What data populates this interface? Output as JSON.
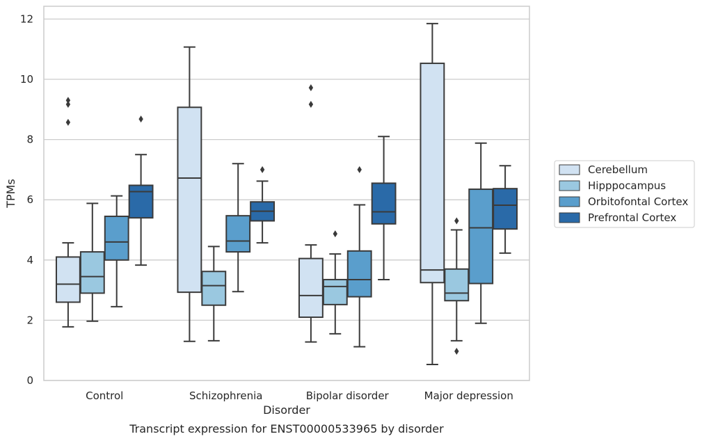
{
  "chart_data": {
    "type": "box",
    "xlabel": "Disorder",
    "ylabel": "TPMs",
    "caption": "Transcript expression for ENST00000533965 by disorder",
    "ylim": [
      0,
      12.4
    ],
    "yticks": [
      0,
      2,
      4,
      6,
      8,
      10,
      12
    ],
    "grid": "horizontal",
    "legend_position": "right",
    "categories": [
      "Control",
      "Schizophrenia",
      "Bipolar disorder",
      "Major depression"
    ],
    "series": [
      {
        "name": "Cerebellum",
        "color": "#d1e2f2",
        "boxes": [
          {
            "whislo": 1.78,
            "q1": 2.6,
            "med": 3.2,
            "q3": 4.1,
            "whishi": 4.57,
            "fliers": [
              8.57,
              9.17,
              9.3
            ]
          },
          {
            "whislo": 1.3,
            "q1": 2.93,
            "med": 6.72,
            "q3": 9.07,
            "whishi": 11.07,
            "fliers": []
          },
          {
            "whislo": 1.28,
            "q1": 2.1,
            "med": 2.82,
            "q3": 4.05,
            "whishi": 4.5,
            "fliers": [
              9.17,
              9.72
            ]
          },
          {
            "whislo": 0.53,
            "q1": 3.25,
            "med": 3.67,
            "q3": 10.53,
            "whishi": 11.85,
            "fliers": []
          }
        ]
      },
      {
        "name": "Hipppocampus",
        "color": "#9ac8e0",
        "boxes": [
          {
            "whislo": 1.97,
            "q1": 2.9,
            "med": 3.45,
            "q3": 4.27,
            "whishi": 5.88,
            "fliers": []
          },
          {
            "whislo": 1.32,
            "q1": 2.5,
            "med": 3.15,
            "q3": 3.62,
            "whishi": 4.45,
            "fliers": []
          },
          {
            "whislo": 1.55,
            "q1": 2.52,
            "med": 3.12,
            "q3": 3.35,
            "whishi": 4.2,
            "fliers": [
              4.87
            ]
          },
          {
            "whislo": 1.32,
            "q1": 2.65,
            "med": 2.9,
            "q3": 3.7,
            "whishi": 5.0,
            "fliers": [
              0.97,
              5.3
            ]
          }
        ]
      },
      {
        "name": "Orbitofontal Cortex",
        "color": "#5a9ecc",
        "boxes": [
          {
            "whislo": 2.45,
            "q1": 4.0,
            "med": 4.6,
            "q3": 5.45,
            "whishi": 6.13,
            "fliers": []
          },
          {
            "whislo": 2.95,
            "q1": 4.27,
            "med": 4.63,
            "q3": 5.47,
            "whishi": 7.2,
            "fliers": []
          },
          {
            "whislo": 1.12,
            "q1": 2.78,
            "med": 3.35,
            "q3": 4.3,
            "whishi": 5.83,
            "fliers": [
              7.0
            ]
          },
          {
            "whislo": 1.9,
            "q1": 3.22,
            "med": 5.07,
            "q3": 6.35,
            "whishi": 7.88,
            "fliers": []
          }
        ]
      },
      {
        "name": "Prefrontal Cortex",
        "color": "#2a6aa8",
        "boxes": [
          {
            "whislo": 3.83,
            "q1": 5.4,
            "med": 6.27,
            "q3": 6.48,
            "whishi": 7.5,
            "fliers": [
              8.68
            ]
          },
          {
            "whislo": 4.57,
            "q1": 5.3,
            "med": 5.62,
            "q3": 5.93,
            "whishi": 6.62,
            "fliers": [
              7.0
            ]
          },
          {
            "whislo": 3.35,
            "q1": 5.2,
            "med": 5.6,
            "q3": 6.55,
            "whishi": 8.1,
            "fliers": []
          },
          {
            "whislo": 4.23,
            "q1": 5.03,
            "med": 5.82,
            "q3": 6.37,
            "whishi": 7.13,
            "fliers": []
          }
        ]
      }
    ]
  }
}
